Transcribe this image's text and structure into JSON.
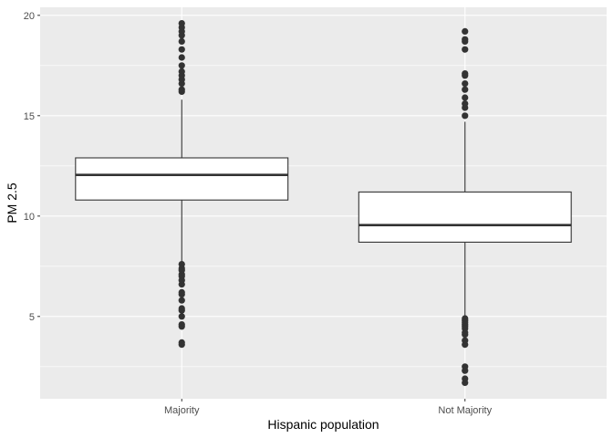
{
  "chart_data": {
    "type": "boxplot",
    "xlabel": "Hispanic population",
    "ylabel": "PM 2.5",
    "categories": [
      "Majority",
      "Not Majority"
    ],
    "ylim": [
      0.9,
      20.4
    ],
    "yticks": [
      5,
      10,
      15,
      20
    ],
    "grid": true,
    "colors": {
      "panel": "#ebebeb",
      "grid_major": "#ffffff",
      "box_fill": "#ffffff",
      "box_stroke": "#333333",
      "outlier": "#333333"
    },
    "boxes": [
      {
        "category": "Majority",
        "whisker_low": 7.7,
        "q1": 10.8,
        "median": 12.05,
        "q3": 12.9,
        "whisker_high": 15.8,
        "outliers": [
          3.6,
          3.7,
          4.5,
          4.6,
          5.0,
          5.3,
          5.4,
          5.8,
          6.1,
          6.2,
          6.6,
          6.8,
          7.0,
          7.1,
          7.3,
          7.4,
          7.6,
          16.2,
          16.3,
          16.6,
          16.8,
          17.0,
          17.2,
          17.5,
          17.9,
          18.3,
          18.7,
          19.0,
          19.2,
          19.4,
          19.6
        ]
      },
      {
        "category": "Not Majority",
        "whisker_low": 5.0,
        "q1": 8.7,
        "median": 9.55,
        "q3": 11.2,
        "whisker_high": 14.7,
        "outliers": [
          1.7,
          1.9,
          2.3,
          2.5,
          3.6,
          3.8,
          4.1,
          4.2,
          4.4,
          4.5,
          4.6,
          4.7,
          4.8,
          4.9,
          15.0,
          15.4,
          15.6,
          15.9,
          16.3,
          16.6,
          17.0,
          17.1,
          18.3,
          18.7,
          18.8,
          19.2
        ]
      }
    ]
  }
}
